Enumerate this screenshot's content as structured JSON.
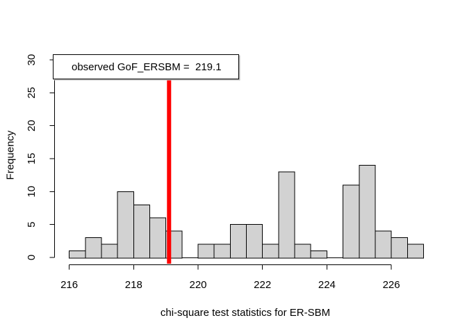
{
  "figure": {
    "background": "#FFFFFF"
  },
  "chart_data": {
    "type": "bar",
    "subtype": "histogram",
    "title": "",
    "xlabel": "chi-square test statistics for ER-SBM",
    "ylabel": "Frequency",
    "bin_start": 216.0,
    "bin_width": 0.5,
    "frequencies": [
      1,
      3,
      2,
      10,
      8,
      6,
      4,
      0,
      2,
      2,
      5,
      5,
      2,
      13,
      2,
      1,
      0,
      11,
      14,
      4,
      3,
      2
    ],
    "x_ticks": [
      216,
      218,
      220,
      222,
      224,
      226
    ],
    "y_ticks": [
      0,
      5,
      10,
      15,
      20,
      25,
      30
    ],
    "xlim": [
      216,
      227
    ],
    "ylim": [
      0,
      30
    ],
    "grid": false,
    "legend_position": "top-left",
    "colors": {
      "bar_fill": "#D2D2D2",
      "bar_border": "#000000",
      "axis": "#000000",
      "observed_line": "#FF0000"
    },
    "observed_line": {
      "x": 219.1,
      "label": "observed GoF_ERSBM =  219.1"
    }
  }
}
